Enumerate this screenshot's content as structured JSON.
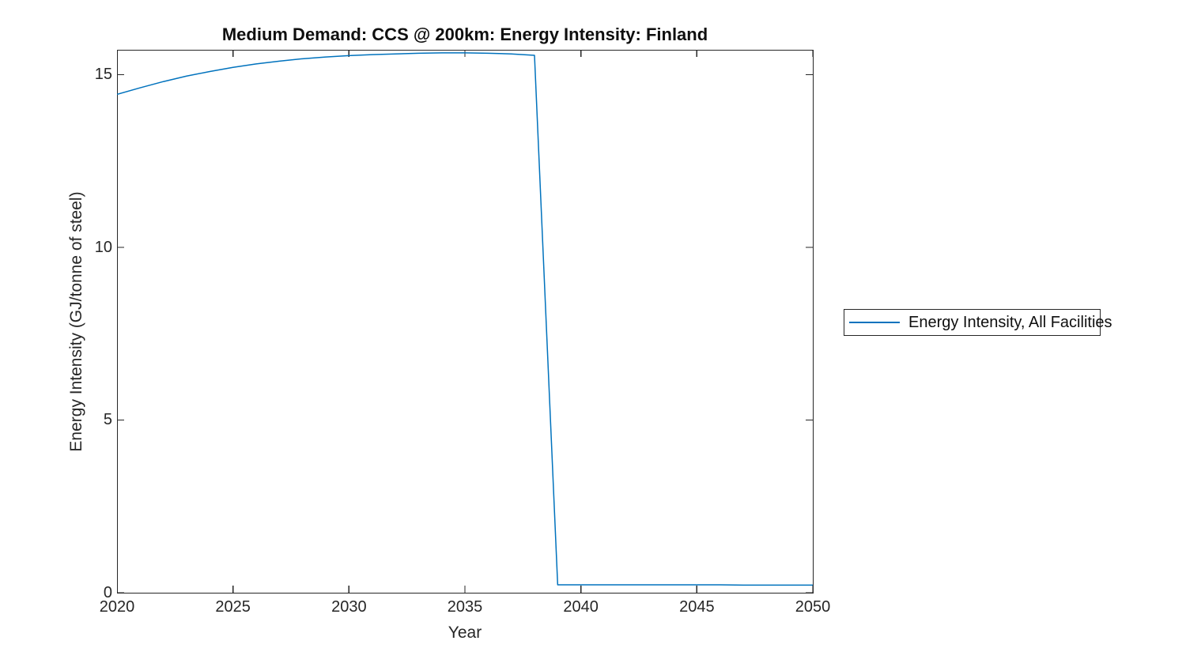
{
  "page": {
    "background": "#ffffff",
    "axis_color": "#262626",
    "text_color": "#262626"
  },
  "chart_data": {
    "type": "line",
    "title": "Medium Demand: CCS @ 200km: Energy Intensity: Finland",
    "xlabel": "Year",
    "ylabel": "Energy Intensity (GJ/tonne of steel)",
    "xlim": [
      2020,
      2050
    ],
    "ylim": [
      0,
      15.72
    ],
    "xticks": [
      2020,
      2025,
      2030,
      2035,
      2040,
      2045,
      2050
    ],
    "yticks": [
      0,
      5,
      10,
      15
    ],
    "grid": false,
    "box": true,
    "legend_position": "outside-right",
    "series": [
      {
        "name": "Energy Intensity, All Facilities",
        "color": "#0072BD",
        "x": [
          2020,
          2021,
          2022,
          2023,
          2024,
          2025,
          2026,
          2027,
          2028,
          2029,
          2030,
          2031,
          2032,
          2033,
          2034,
          2035,
          2036,
          2037,
          2038,
          2039,
          2040,
          2041,
          2042,
          2043,
          2044,
          2045,
          2046,
          2047,
          2048,
          2049,
          2050
        ],
        "values": [
          14.43,
          14.62,
          14.8,
          14.96,
          15.09,
          15.21,
          15.31,
          15.39,
          15.46,
          15.51,
          15.55,
          15.58,
          15.6,
          15.62,
          15.63,
          15.63,
          15.62,
          15.6,
          15.56,
          0.23,
          0.23,
          0.23,
          0.23,
          0.23,
          0.23,
          0.23,
          0.23,
          0.22,
          0.22,
          0.22,
          0.22
        ]
      }
    ]
  }
}
